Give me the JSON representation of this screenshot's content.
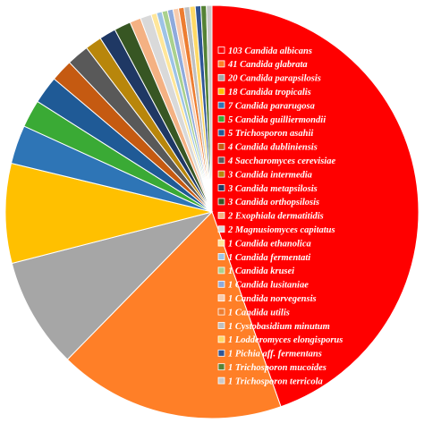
{
  "chart_data": {
    "type": "pie",
    "title": "",
    "legend_position": "center-right",
    "slices": [
      {
        "value": 103,
        "label": "103 Candida albicans",
        "color": "#FF0000"
      },
      {
        "value": 41,
        "label": "41 Candida glabrata",
        "color": "#FF7F27"
      },
      {
        "value": 20,
        "label": "20 Candida parapsilosis",
        "color": "#A6A6A6"
      },
      {
        "value": 18,
        "label": "18 Candida tropicalis",
        "color": "#FFC000"
      },
      {
        "value": 7,
        "label": "7 Candida pararugosa",
        "color": "#2E75B6"
      },
      {
        "value": 5,
        "label": "5 Candida guilliermondii",
        "color": "#3AAA35"
      },
      {
        "value": 5,
        "label": "5 Trichosporon asahii",
        "color": "#1F5A96"
      },
      {
        "value": 4,
        "label": "4 Candida dubliniensis",
        "color": "#C55A11"
      },
      {
        "value": 4,
        "label": "4 Saccharomyces cerevisiae",
        "color": "#595959"
      },
      {
        "value": 3,
        "label": "3 Candida intermedia",
        "color": "#B8860B"
      },
      {
        "value": 3,
        "label": "3 Candida metapsilosis",
        "color": "#1F3864"
      },
      {
        "value": 3,
        "label": "3 Candida orthopsilosis",
        "color": "#375623"
      },
      {
        "value": 2,
        "label": "2 Exophiala dermatitidis",
        "color": "#F4B183"
      },
      {
        "value": 2,
        "label": "2 Magnusiomyces capitatus",
        "color": "#D9D9D9"
      },
      {
        "value": 1,
        "label": "1 Candida ethanolica",
        "color": "#FFE699"
      },
      {
        "value": 1,
        "label": "1 Candida fermentati",
        "color": "#9DC3E6"
      },
      {
        "value": 1,
        "label": "1 Candida krusei",
        "color": "#A9D18E"
      },
      {
        "value": 1,
        "label": "1 Candida lusitaniae",
        "color": "#8FAADC"
      },
      {
        "value": 1,
        "label": "1 Candida norvegensis",
        "color": "#F8CBAD"
      },
      {
        "value": 1,
        "label": "1 Candida utilis",
        "color": "#ED7D31"
      },
      {
        "value": 1,
        "label": "1 Cystobasidium minutum",
        "color": "#BFBFBF"
      },
      {
        "value": 1,
        "label": "1 Lodderomyces elongisporus",
        "color": "#FFD966"
      },
      {
        "value": 1,
        "label": "1 Pichia aff. fermentans",
        "color": "#2F5597"
      },
      {
        "value": 1,
        "label": "1 Trichosporon mucoides",
        "color": "#548235"
      },
      {
        "value": 1,
        "label": "1 Trichosporon terricola",
        "color": "#C9C9C9"
      }
    ]
  }
}
